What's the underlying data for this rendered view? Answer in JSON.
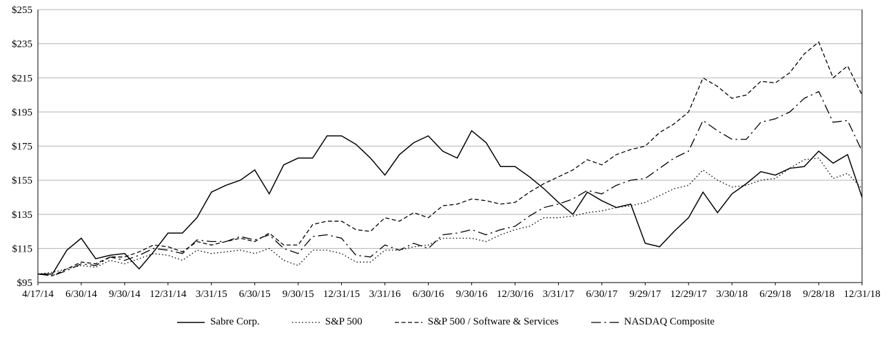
{
  "chart_data": {
    "type": "line",
    "title": "",
    "ylim": [
      95,
      255
    ],
    "grid": true,
    "legend_position": "bottom",
    "colors": {
      "line": "#000000",
      "grid": "#b3b3b3",
      "background": "#ffffff"
    },
    "y_ticks": [
      "$255",
      "$235",
      "$215",
      "$195",
      "$175",
      "$155",
      "$135",
      "$115",
      "$95"
    ],
    "y_tick_values": [
      255,
      235,
      215,
      195,
      175,
      155,
      135,
      115,
      95
    ],
    "x_tick_labels": [
      "4/17/14",
      "6/30/14",
      "9/30/14",
      "12/31/14",
      "3/31/15",
      "6/30/15",
      "9/30/15",
      "12/31/15",
      "3/31/16",
      "6/30/16",
      "9/30/16",
      "12/30/16",
      "3/31/17",
      "6/30/17",
      "9/29/17",
      "12/29/17",
      "3/30/18",
      "6/29/18",
      "9/28/18",
      "12/31/18"
    ],
    "x": [
      "4/17/14",
      "4/30/14",
      "5/30/14",
      "6/30/14",
      "7/31/14",
      "8/29/14",
      "9/30/14",
      "10/31/14",
      "11/28/14",
      "12/31/14",
      "1/30/15",
      "2/27/15",
      "3/31/15",
      "4/30/15",
      "5/29/15",
      "6/30/15",
      "7/31/15",
      "8/31/15",
      "9/30/15",
      "10/30/15",
      "11/30/15",
      "12/31/15",
      "1/29/16",
      "2/29/16",
      "3/31/16",
      "4/29/16",
      "5/31/16",
      "6/30/16",
      "7/29/16",
      "8/31/16",
      "9/30/16",
      "10/31/16",
      "11/30/16",
      "12/30/16",
      "1/31/17",
      "2/28/17",
      "3/31/17",
      "4/28/17",
      "5/31/17",
      "6/30/17",
      "7/31/17",
      "8/31/17",
      "9/29/17",
      "10/31/17",
      "11/30/17",
      "12/29/17",
      "1/31/18",
      "2/28/18",
      "3/30/18",
      "4/30/18",
      "5/31/18",
      "6/29/18",
      "7/31/18",
      "8/31/18",
      "9/28/18",
      "10/31/18",
      "11/30/18",
      "12/31/18"
    ],
    "series": [
      {
        "name": "Sabre Corp.",
        "style": "solid",
        "values": [
          100,
          100,
          114,
          121,
          109,
          111,
          112,
          103,
          113,
          124,
          124,
          133,
          148,
          152,
          155,
          161,
          147,
          164,
          168,
          168,
          181,
          181,
          176,
          168,
          158,
          170,
          177,
          181,
          172,
          168,
          184,
          177,
          163,
          163,
          157,
          150,
          142,
          135,
          148,
          143,
          139,
          141,
          118,
          116,
          125,
          133,
          148,
          136,
          147,
          153,
          160,
          158,
          162,
          163,
          172,
          165,
          170,
          145
        ]
      },
      {
        "name": "S&P 500",
        "style": "dotted",
        "values": [
          100,
          101,
          103,
          105,
          104,
          108,
          106,
          109,
          112,
          111,
          108,
          114,
          112,
          113,
          114,
          112,
          115,
          108,
          105,
          114,
          114,
          112,
          107,
          107,
          114,
          114,
          116,
          117,
          121,
          121,
          121,
          119,
          123,
          126,
          128,
          133,
          133,
          134,
          136,
          137,
          139,
          140,
          142,
          146,
          150,
          152,
          161,
          155,
          151,
          152,
          155,
          156,
          162,
          167,
          168,
          156,
          159,
          150
        ]
      },
      {
        "name": "S&P 500 / Software & Services",
        "style": "dashed",
        "values": [
          100,
          99,
          103,
          107,
          106,
          110,
          110,
          113,
          117,
          116,
          113,
          119,
          117,
          119,
          121,
          119,
          124,
          117,
          117,
          129,
          131,
          131,
          126,
          125,
          133,
          131,
          136,
          133,
          140,
          141,
          144,
          143,
          141,
          142,
          148,
          153,
          157,
          161,
          167,
          164,
          170,
          173,
          175,
          183,
          188,
          195,
          215,
          210,
          203,
          205,
          213,
          212,
          218,
          229,
          236,
          215,
          222,
          205
        ]
      },
      {
        "name": "NASDAQ Composite",
        "style": "dashdot",
        "values": [
          100,
          99,
          102,
          106,
          105,
          110,
          108,
          111,
          115,
          114,
          112,
          120,
          119,
          119,
          122,
          120,
          123,
          115,
          112,
          122,
          123,
          121,
          111,
          110,
          117,
          114,
          118,
          115,
          123,
          124,
          126,
          123,
          126,
          128,
          134,
          139,
          141,
          144,
          149,
          147,
          152,
          155,
          156,
          162,
          168,
          172,
          190,
          184,
          179,
          179,
          189,
          191,
          195,
          203,
          207,
          189,
          190,
          172
        ]
      }
    ]
  }
}
